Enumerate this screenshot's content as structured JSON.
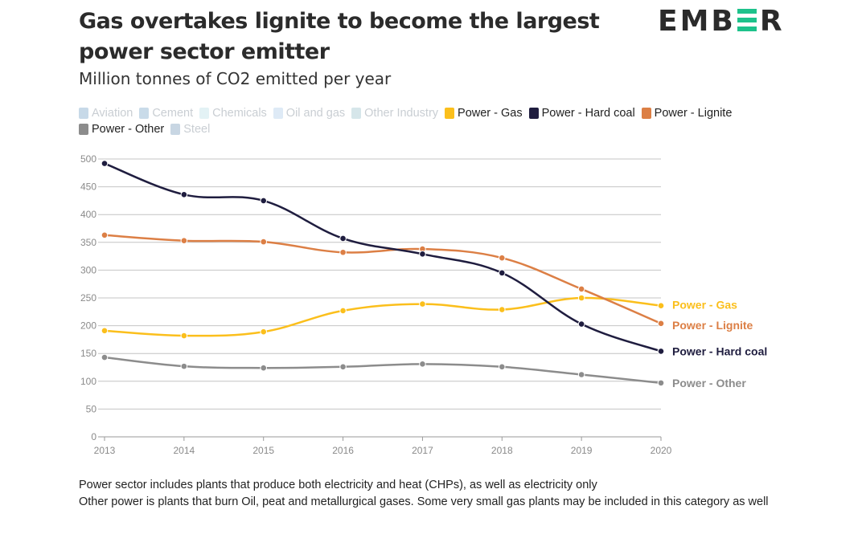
{
  "header": {
    "title": "Gas overtakes lignite to become the largest power sector emitter",
    "subtitle": "Million tonnes of CO2 emitted per year",
    "logo_left": "EMB",
    "logo_right": "R"
  },
  "legend": [
    {
      "label": "Aviation",
      "active": false,
      "color": "#c7d9e8"
    },
    {
      "label": "Cement",
      "active": false,
      "color": "#c9dbe9"
    },
    {
      "label": "Chemicals",
      "active": false,
      "color": "#e3f2f5"
    },
    {
      "label": "Oil and gas",
      "active": false,
      "color": "#deeaf6"
    },
    {
      "label": "Other Industry",
      "active": false,
      "color": "#d6e6ea"
    },
    {
      "label": "Power - Gas",
      "active": true,
      "color": "#fbbf1c"
    },
    {
      "label": "Power - Hard coal",
      "active": true,
      "color": "#1f1d3f"
    },
    {
      "label": "Power - Lignite",
      "active": true,
      "color": "#dc7f45"
    },
    {
      "label": "Power - Other",
      "active": true,
      "color": "#8c8c8c"
    },
    {
      "label": "Steel",
      "active": false,
      "color": "#c8d6e3"
    }
  ],
  "chart_data": {
    "type": "line",
    "x": [
      2013,
      2014,
      2015,
      2016,
      2017,
      2018,
      2019,
      2020
    ],
    "ylim": [
      0,
      500
    ],
    "yticks": [
      0,
      50,
      100,
      150,
      200,
      250,
      300,
      350,
      400,
      450,
      500
    ],
    "grid": true,
    "series": [
      {
        "name": "Power - Hard coal",
        "color": "#1f1d3f",
        "end_label": "Power - Hard coal",
        "values": [
          492,
          436,
          425,
          357,
          329,
          295,
          203,
          154
        ]
      },
      {
        "name": "Power - Lignite",
        "color": "#dc7f45",
        "end_label": "Power - Lignite",
        "values": [
          363,
          353,
          351,
          332,
          338,
          322,
          266,
          204
        ]
      },
      {
        "name": "Power - Gas",
        "color": "#fbbf1c",
        "end_label": "Power - Gas",
        "values": [
          191,
          182,
          189,
          227,
          239,
          229,
          250,
          236
        ]
      },
      {
        "name": "Power - Other",
        "color": "#8c8c8c",
        "end_label": "Power - Other",
        "values": [
          143,
          127,
          124,
          126,
          131,
          126,
          112,
          97
        ]
      }
    ]
  },
  "notes": [
    "Power sector includes plants that produce both electricity and heat (CHPs), as well as electricity only",
    "Other power is plants that burn Oil, peat and metallurgical gases. Some very small gas plants may be included in this category as well"
  ]
}
